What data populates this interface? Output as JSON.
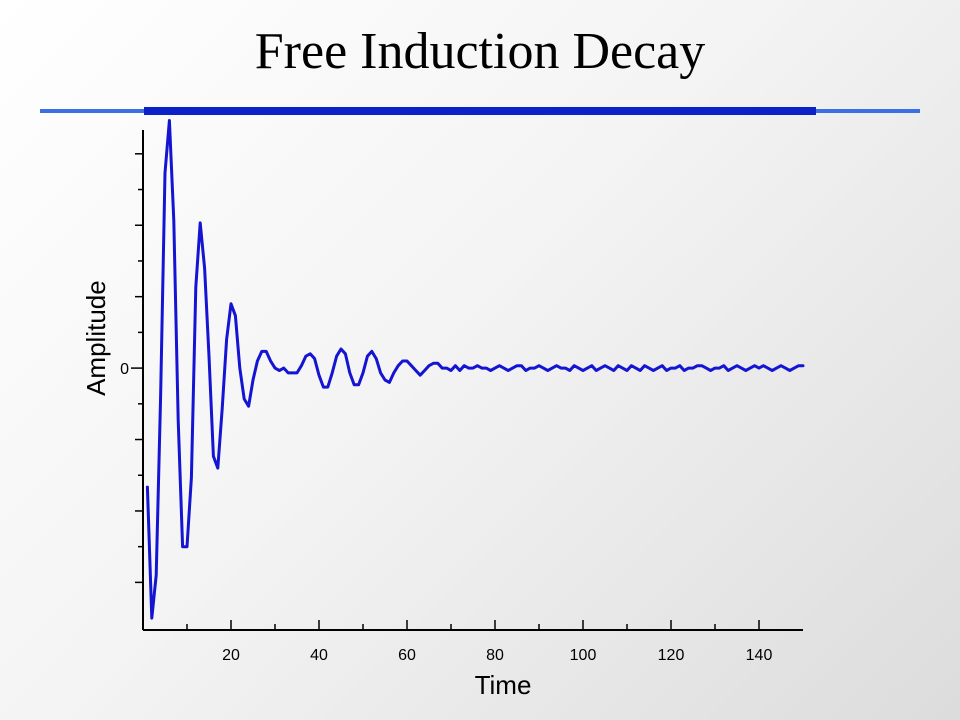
{
  "slide": {
    "title": "Free Induction Decay"
  },
  "colors": {
    "rule_thin": "#3b6fe6",
    "rule_thick": "#0a22c8",
    "series": "#1414d2"
  },
  "chart_data": {
    "type": "line",
    "title": "",
    "xlabel": "Time",
    "ylabel": "Amplitude",
    "xlim": [
      0,
      150
    ],
    "ylim": [
      -1.1,
      1.0
    ],
    "x_ticks": [
      20,
      40,
      60,
      80,
      100,
      120,
      140
    ],
    "x_tick_labels": [
      "20",
      "40",
      "60",
      "80",
      "100",
      "120",
      "140"
    ],
    "y_ticks": [
      0
    ],
    "y_tick_labels": [
      "0"
    ],
    "y_minor_ticks": [
      -0.9,
      -0.6,
      -0.3,
      0.3,
      0.6,
      0.9
    ],
    "grid": false,
    "series": [
      {
        "x": [
          1,
          2,
          3,
          4,
          5,
          6,
          7,
          8,
          9,
          10,
          11,
          12,
          13,
          14,
          15,
          16,
          17,
          18,
          19,
          20,
          21,
          22,
          23,
          24,
          25,
          26,
          27,
          28,
          29,
          30,
          31,
          32,
          33,
          34,
          35,
          36,
          37,
          38,
          39,
          40,
          41,
          42,
          43,
          44,
          45,
          46,
          47,
          48,
          49,
          50,
          51,
          52,
          53,
          54,
          55,
          56,
          57,
          58,
          59,
          60,
          61,
          62,
          63,
          64,
          65,
          66,
          67,
          68,
          69,
          70,
          71,
          72,
          73,
          74,
          75,
          76,
          77,
          78,
          79,
          80,
          81,
          82,
          83,
          84,
          85,
          86,
          87,
          88,
          89,
          90,
          91,
          92,
          93,
          94,
          95,
          96,
          97,
          98,
          99,
          100,
          101,
          102,
          103,
          104,
          105,
          106,
          107,
          108,
          109,
          110,
          111,
          112,
          113,
          114,
          115,
          116,
          117,
          118,
          119,
          120,
          121,
          122,
          123,
          124,
          125,
          126,
          127,
          128,
          129,
          130,
          131,
          132,
          133,
          134,
          135,
          136,
          137,
          138,
          139,
          140,
          141,
          142,
          143,
          144,
          145,
          146,
          147,
          148,
          149,
          150
        ],
        "values": [
          -0.5,
          -1.05,
          -0.87,
          -0.12,
          0.82,
          1.04,
          0.62,
          -0.22,
          -0.75,
          -0.75,
          -0.46,
          0.34,
          0.61,
          0.42,
          0.05,
          -0.37,
          -0.42,
          -0.17,
          0.12,
          0.27,
          0.22,
          0.0,
          -0.13,
          -0.16,
          -0.05,
          0.03,
          0.07,
          0.07,
          0.03,
          0.0,
          -0.01,
          0.0,
          -0.02,
          -0.02,
          -0.02,
          0.01,
          0.05,
          0.06,
          0.04,
          -0.03,
          -0.08,
          -0.08,
          -0.02,
          0.05,
          0.08,
          0.06,
          -0.02,
          -0.07,
          -0.07,
          -0.02,
          0.05,
          0.07,
          0.04,
          -0.02,
          -0.05,
          -0.06,
          -0.02,
          0.01,
          0.03,
          0.03,
          0.01,
          -0.01,
          -0.03,
          -0.01,
          0.01,
          0.02,
          0.02,
          0.0,
          0.0,
          -0.01,
          0.01,
          -0.01,
          0.01,
          0.0,
          0.0,
          0.01,
          0.0,
          0.0,
          -0.01,
          0.0,
          0.01,
          0.0,
          -0.01,
          0.0,
          0.01,
          0.01,
          -0.01,
          0.0,
          0.0,
          0.01,
          0.0,
          -0.01,
          0.0,
          0.01,
          0.0,
          0.0,
          -0.01,
          0.01,
          0.0,
          -0.01,
          0.0,
          0.01,
          -0.01,
          0.0,
          0.01,
          0.0,
          -0.01,
          0.01,
          0.0,
          -0.01,
          0.01,
          0.0,
          -0.01,
          0.01,
          0.0,
          -0.01,
          0.0,
          0.01,
          -0.01,
          0.0,
          0.0,
          0.01,
          -0.01,
          0.0,
          0.0,
          0.01,
          0.01,
          0.0,
          -0.01,
          0.0,
          0.0,
          0.01,
          -0.01,
          0.0,
          0.01,
          0.0,
          -0.01,
          0.0,
          0.01,
          0.0,
          0.01,
          0.0,
          -0.01,
          0.0,
          0.01,
          0.0,
          -0.01,
          0.0,
          0.01,
          0.01
        ]
      }
    ]
  }
}
